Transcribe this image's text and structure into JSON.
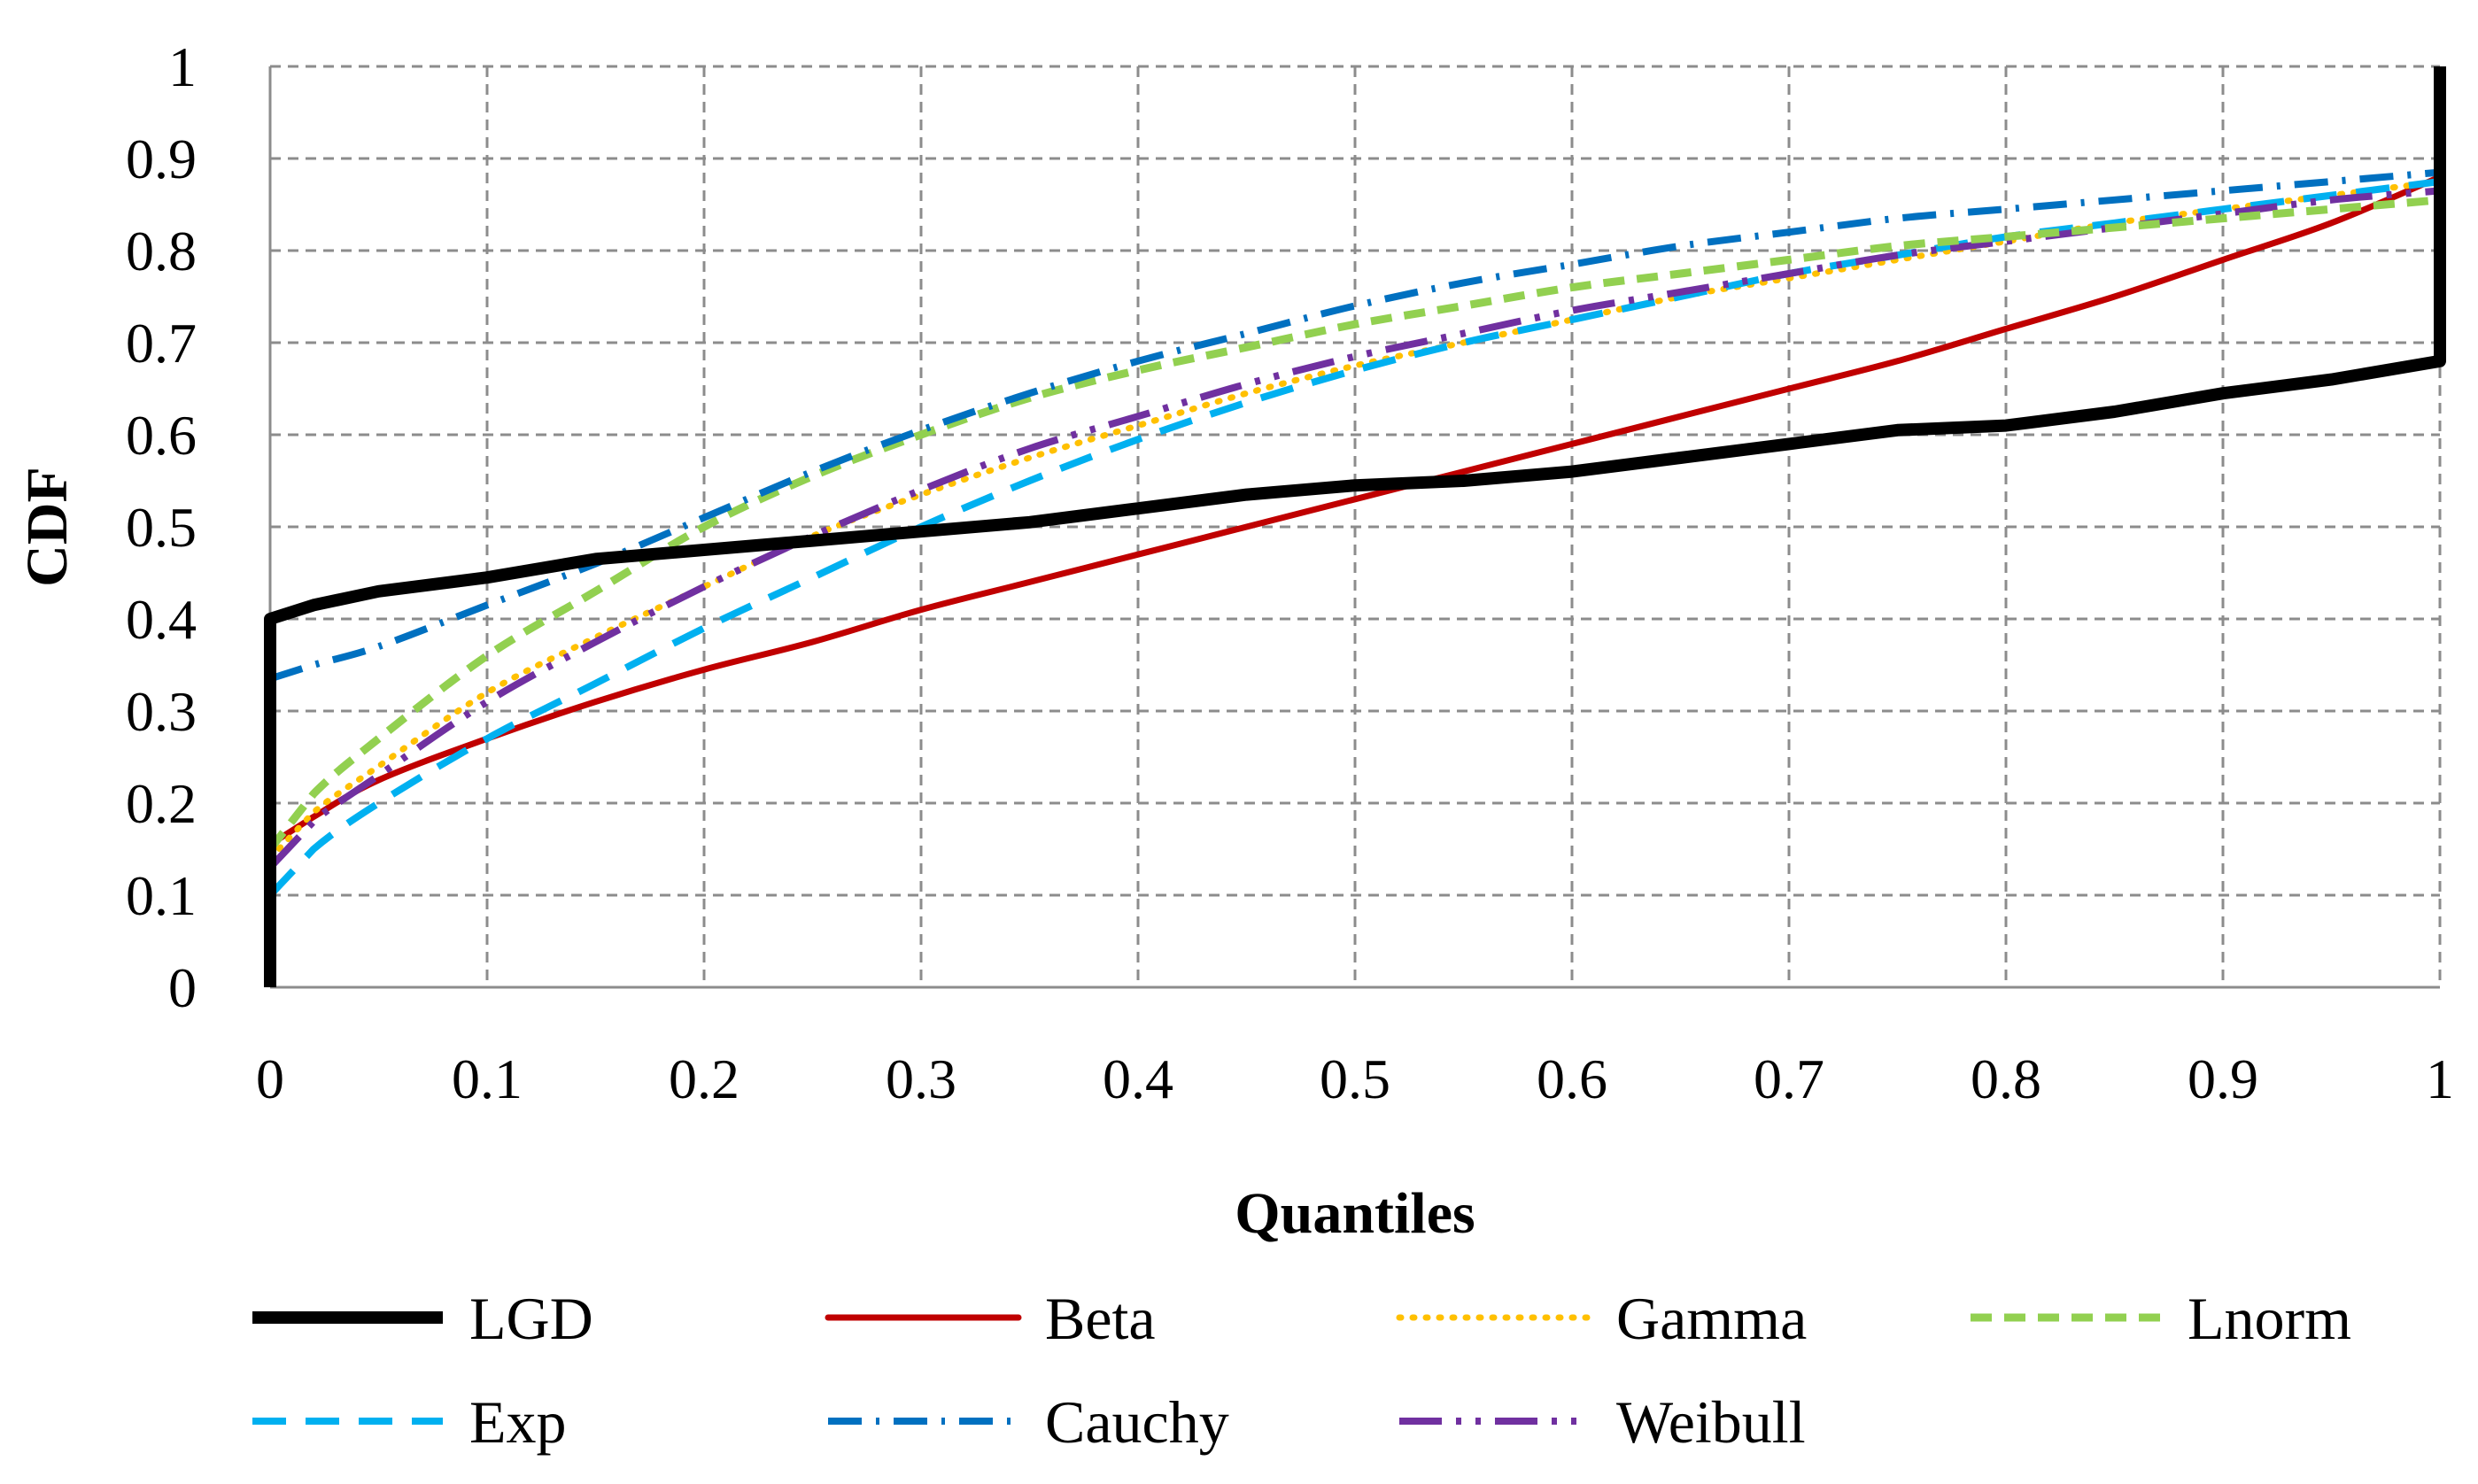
{
  "chart_data": {
    "type": "line",
    "title": "",
    "xlabel": "Quantiles",
    "ylabel": "CDF",
    "xlim": [
      0,
      1
    ],
    "ylim": [
      0,
      1
    ],
    "grid": true,
    "legend_position": "bottom",
    "x_ticks": [
      "0",
      "0.1",
      "0.2",
      "0.3",
      "0.4",
      "0.5",
      "0.6",
      "0.7",
      "0.8",
      "0.9",
      "1"
    ],
    "y_ticks": [
      "0",
      "0.1",
      "0.2",
      "0.3",
      "0.4",
      "0.5",
      "0.6",
      "0.7",
      "0.8",
      "0.9",
      "1"
    ],
    "series": [
      {
        "name": "LGD",
        "color": "#000000",
        "style": "solid-thick",
        "step": true,
        "x": [
          0,
          0,
          0.02,
          0.05,
          0.1,
          0.15,
          0.2,
          0.25,
          0.3,
          0.35,
          0.4,
          0.45,
          0.5,
          0.55,
          0.6,
          0.65,
          0.7,
          0.75,
          0.8,
          0.85,
          0.9,
          0.95,
          1,
          1
        ],
        "y": [
          0,
          0.4,
          0.415,
          0.43,
          0.445,
          0.465,
          0.475,
          0.485,
          0.495,
          0.505,
          0.52,
          0.535,
          0.545,
          0.55,
          0.56,
          0.575,
          0.59,
          0.605,
          0.61,
          0.625,
          0.645,
          0.66,
          0.68,
          1
        ]
      },
      {
        "name": "Beta",
        "color": "#c00000",
        "style": "solid",
        "x": [
          0,
          0.02,
          0.05,
          0.1,
          0.15,
          0.2,
          0.25,
          0.3,
          0.35,
          0.4,
          0.45,
          0.5,
          0.55,
          0.6,
          0.65,
          0.7,
          0.75,
          0.8,
          0.85,
          0.9,
          0.95,
          1
        ],
        "y": [
          0.155,
          0.185,
          0.225,
          0.27,
          0.31,
          0.345,
          0.375,
          0.41,
          0.44,
          0.47,
          0.5,
          0.53,
          0.56,
          0.59,
          0.62,
          0.65,
          0.68,
          0.715,
          0.75,
          0.79,
          0.83,
          0.88
        ]
      },
      {
        "name": "Gamma",
        "color": "#ffc000",
        "style": "dotted",
        "x": [
          0,
          0.02,
          0.05,
          0.1,
          0.15,
          0.2,
          0.25,
          0.3,
          0.35,
          0.4,
          0.45,
          0.5,
          0.55,
          0.6,
          0.65,
          0.7,
          0.75,
          0.8,
          0.85,
          0.9,
          0.95,
          1
        ],
        "y": [
          0.14,
          0.19,
          0.24,
          0.32,
          0.38,
          0.435,
          0.49,
          0.535,
          0.575,
          0.61,
          0.645,
          0.675,
          0.7,
          0.725,
          0.75,
          0.77,
          0.79,
          0.81,
          0.83,
          0.845,
          0.86,
          0.875
        ]
      },
      {
        "name": "Lnorm",
        "color": "#92d050",
        "style": "dashed",
        "x": [
          0,
          0.02,
          0.05,
          0.1,
          0.15,
          0.2,
          0.25,
          0.3,
          0.35,
          0.4,
          0.45,
          0.5,
          0.55,
          0.6,
          0.65,
          0.7,
          0.75,
          0.8,
          0.85,
          0.9,
          0.95,
          1
        ],
        "y": [
          0.15,
          0.21,
          0.27,
          0.36,
          0.43,
          0.5,
          0.555,
          0.6,
          0.64,
          0.67,
          0.695,
          0.72,
          0.74,
          0.76,
          0.775,
          0.79,
          0.805,
          0.815,
          0.825,
          0.835,
          0.845,
          0.855
        ]
      },
      {
        "name": "Exp",
        "color": "#00b0f0",
        "style": "long-dash",
        "x": [
          0,
          0.02,
          0.05,
          0.1,
          0.15,
          0.2,
          0.25,
          0.3,
          0.35,
          0.4,
          0.45,
          0.5,
          0.55,
          0.6,
          0.65,
          0.7,
          0.75,
          0.8,
          0.85,
          0.9,
          0.95,
          1
        ],
        "y": [
          0.1,
          0.15,
          0.2,
          0.27,
          0.33,
          0.39,
          0.445,
          0.5,
          0.55,
          0.595,
          0.635,
          0.67,
          0.7,
          0.725,
          0.75,
          0.775,
          0.795,
          0.815,
          0.83,
          0.845,
          0.86,
          0.875
        ]
      },
      {
        "name": "Cauchy",
        "color": "#0070c0",
        "style": "dash-dot",
        "x": [
          0,
          0.02,
          0.05,
          0.1,
          0.15,
          0.2,
          0.25,
          0.3,
          0.35,
          0.4,
          0.45,
          0.5,
          0.55,
          0.6,
          0.65,
          0.7,
          0.75,
          0.8,
          0.85,
          0.9,
          0.95,
          1
        ],
        "y": [
          0.335,
          0.35,
          0.37,
          0.415,
          0.46,
          0.51,
          0.56,
          0.605,
          0.645,
          0.68,
          0.71,
          0.74,
          0.765,
          0.785,
          0.805,
          0.82,
          0.835,
          0.845,
          0.855,
          0.865,
          0.875,
          0.885
        ]
      },
      {
        "name": "Weibull",
        "color": "#7030a0",
        "style": "long-dash-dot",
        "x": [
          0,
          0.02,
          0.05,
          0.1,
          0.15,
          0.2,
          0.25,
          0.3,
          0.35,
          0.4,
          0.45,
          0.5,
          0.55,
          0.6,
          0.65,
          0.7,
          0.75,
          0.8,
          0.85,
          0.9,
          0.95,
          1
        ],
        "y": [
          0.13,
          0.18,
          0.23,
          0.31,
          0.375,
          0.435,
          0.49,
          0.54,
          0.585,
          0.62,
          0.655,
          0.685,
          0.71,
          0.735,
          0.755,
          0.775,
          0.795,
          0.81,
          0.825,
          0.84,
          0.855,
          0.865
        ]
      }
    ]
  }
}
